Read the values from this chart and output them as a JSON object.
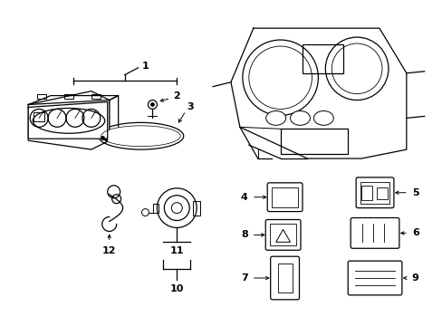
{
  "background_color": "#ffffff",
  "line_color": "#000000",
  "lw": 0.9,
  "fig_w": 4.89,
  "fig_h": 3.6,
  "dpi": 100
}
